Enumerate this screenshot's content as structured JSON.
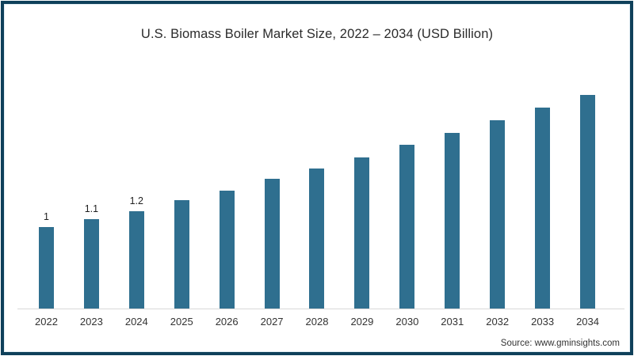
{
  "title": "U.S. Biomass Boiler Market Size, 2022 – 2034  (USD Billion)",
  "source": "Source: www.gminsights.com",
  "colors": {
    "bar": "#2f6f8f",
    "frame_border": "#0f405a",
    "axis_line": "#d9d9d9",
    "title_text": "#2b2b2b",
    "tick_text": "#333333"
  },
  "chart_data": {
    "type": "bar",
    "title": "U.S. Biomass Boiler Market Size, 2022 – 2034  (USD Billion)",
    "categories": [
      "2022",
      "2023",
      "2024",
      "2025",
      "2026",
      "2027",
      "2028",
      "2029",
      "2030",
      "2031",
      "2032",
      "2033",
      "2034"
    ],
    "values": [
      1,
      1.1,
      1.2,
      1.33,
      1.45,
      1.59,
      1.72,
      1.86,
      2.01,
      2.16,
      2.31,
      2.47,
      2.63
    ],
    "bar_labels": [
      "1",
      "1.1",
      "1.2",
      "",
      "",
      "",
      "",
      "",
      "",
      "",
      "",
      "",
      ""
    ],
    "xlabel": "",
    "ylabel": "",
    "ylim": [
      0,
      2.82
    ],
    "grid": false,
    "legend": false,
    "y_axis_shown": false,
    "source": "Source: www.gminsights.com"
  }
}
